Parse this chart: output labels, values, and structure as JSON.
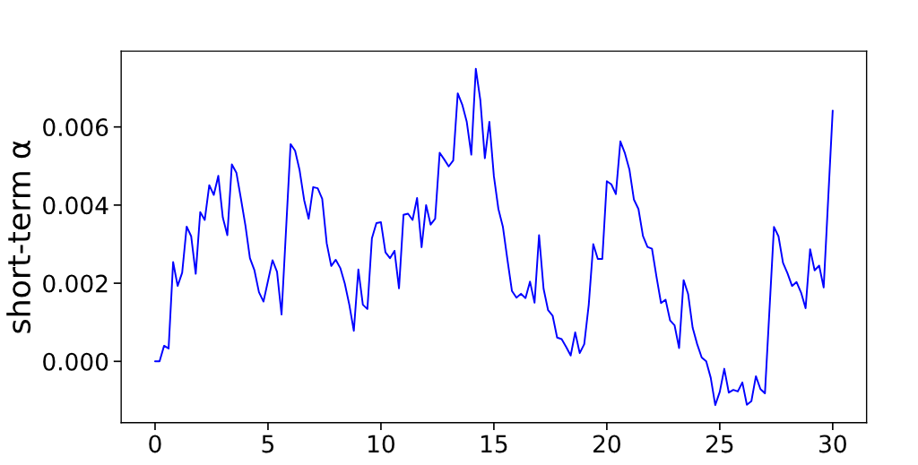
{
  "chart_data": {
    "type": "line",
    "ylabel": "short-term α",
    "x": [
      0,
      0.2,
      0.4,
      0.6,
      0.8,
      1.0,
      1.2,
      1.4,
      1.6,
      1.8,
      2.0,
      2.2,
      2.4,
      2.6,
      2.8,
      3.0,
      3.2,
      3.4,
      3.6,
      3.8,
      4.0,
      4.2,
      4.4,
      4.6,
      4.8,
      5.0,
      5.2,
      5.4,
      5.6,
      6.0,
      6.2,
      6.4,
      6.6,
      6.8,
      7.0,
      7.2,
      7.4,
      7.6,
      7.8,
      8.0,
      8.2,
      8.4,
      8.6,
      8.8,
      9.0,
      9.2,
      9.4,
      9.6,
      9.8,
      10.0,
      10.2,
      10.4,
      10.6,
      10.8,
      11.0,
      11.2,
      11.4,
      11.6,
      11.8,
      12.0,
      12.2,
      12.4,
      12.6,
      12.8,
      13.0,
      13.2,
      13.4,
      13.6,
      13.8,
      14.0,
      14.2,
      14.4,
      14.6,
      14.8,
      15.0,
      15.2,
      15.4,
      15.6,
      15.8,
      16.0,
      16.2,
      16.4,
      16.6,
      16.8,
      17.0,
      17.2,
      17.4,
      17.6,
      17.8,
      18.0,
      18.2,
      18.4,
      18.6,
      18.8,
      19.0,
      19.2,
      19.4,
      19.6,
      19.8,
      20.0,
      20.2,
      20.4,
      20.6,
      20.8,
      21.0,
      21.2,
      21.4,
      21.6,
      21.8,
      22.0,
      22.2,
      22.4,
      22.6,
      22.8,
      23.0,
      23.2,
      23.4,
      23.6,
      23.8,
      24.0,
      24.2,
      24.4,
      24.6,
      24.8,
      25.0,
      25.2,
      25.4,
      25.6,
      25.8,
      26.0,
      26.2,
      26.4,
      26.6,
      26.8,
      27.0,
      27.4,
      27.6,
      27.8,
      28.0,
      28.2,
      28.4,
      28.6,
      28.8,
      29.0,
      29.2,
      29.4,
      29.6,
      30.0
    ],
    "series": [
      {
        "color": "#0000ff",
        "values": [
          0.0,
          0.0,
          0.0004,
          0.00033,
          0.00254,
          0.00193,
          0.00227,
          0.00345,
          0.0032,
          0.00224,
          0.00382,
          0.00362,
          0.00451,
          0.00426,
          0.00475,
          0.00368,
          0.00323,
          0.00504,
          0.00483,
          0.00417,
          0.00348,
          0.00264,
          0.00233,
          0.00177,
          0.00153,
          0.00206,
          0.00259,
          0.00229,
          0.0012,
          0.00556,
          0.00539,
          0.00489,
          0.00413,
          0.00365,
          0.00446,
          0.00443,
          0.00416,
          0.00302,
          0.00244,
          0.0026,
          0.00239,
          0.00199,
          0.00145,
          0.00078,
          0.00235,
          0.00145,
          0.00134,
          0.00315,
          0.00354,
          0.00356,
          0.00279,
          0.00264,
          0.00283,
          0.00187,
          0.00375,
          0.00378,
          0.00362,
          0.00418,
          0.00292,
          0.004,
          0.0035,
          0.00365,
          0.00534,
          0.00517,
          0.00499,
          0.00514,
          0.00686,
          0.00657,
          0.00613,
          0.00529,
          0.00749,
          0.00669,
          0.0052,
          0.00613,
          0.00474,
          0.0039,
          0.00344,
          0.0026,
          0.0018,
          0.00163,
          0.00173,
          0.00162,
          0.00204,
          0.0015,
          0.00323,
          0.00186,
          0.00131,
          0.00117,
          0.00061,
          0.00057,
          0.00037,
          0.00015,
          0.00074,
          0.00021,
          0.00044,
          0.00145,
          0.003,
          0.00262,
          0.00262,
          0.00461,
          0.00453,
          0.00428,
          0.00563,
          0.00533,
          0.00491,
          0.00414,
          0.0039,
          0.00321,
          0.00293,
          0.00288,
          0.00216,
          0.00149,
          0.00158,
          0.00105,
          0.00092,
          0.00034,
          0.00208,
          0.00172,
          0.00086,
          0.00044,
          0.0001,
          0.0,
          -0.00042,
          -0.00112,
          -0.00078,
          -0.00019,
          -0.0008,
          -0.00073,
          -0.00077,
          -0.00054,
          -0.00111,
          -0.00102,
          -0.00038,
          -0.00071,
          -0.00082,
          0.00344,
          0.0032,
          0.00252,
          0.00225,
          0.00193,
          0.00203,
          0.00176,
          0.00136,
          0.00287,
          0.00233,
          0.00245,
          0.00189,
          0.00642
        ]
      }
    ],
    "xlim": [
      -1.5,
      31.5
    ],
    "ylim": [
      -0.00157,
      0.00794
    ],
    "xticks": [
      0,
      5,
      10,
      15,
      20,
      25,
      30
    ],
    "yticks": [
      {
        "value": 0,
        "label": "0.000"
      },
      {
        "value": 0.002,
        "label": "0.002"
      },
      {
        "value": 0.004,
        "label": "0.004"
      },
      {
        "value": 0.006,
        "label": "0.006"
      }
    ]
  }
}
